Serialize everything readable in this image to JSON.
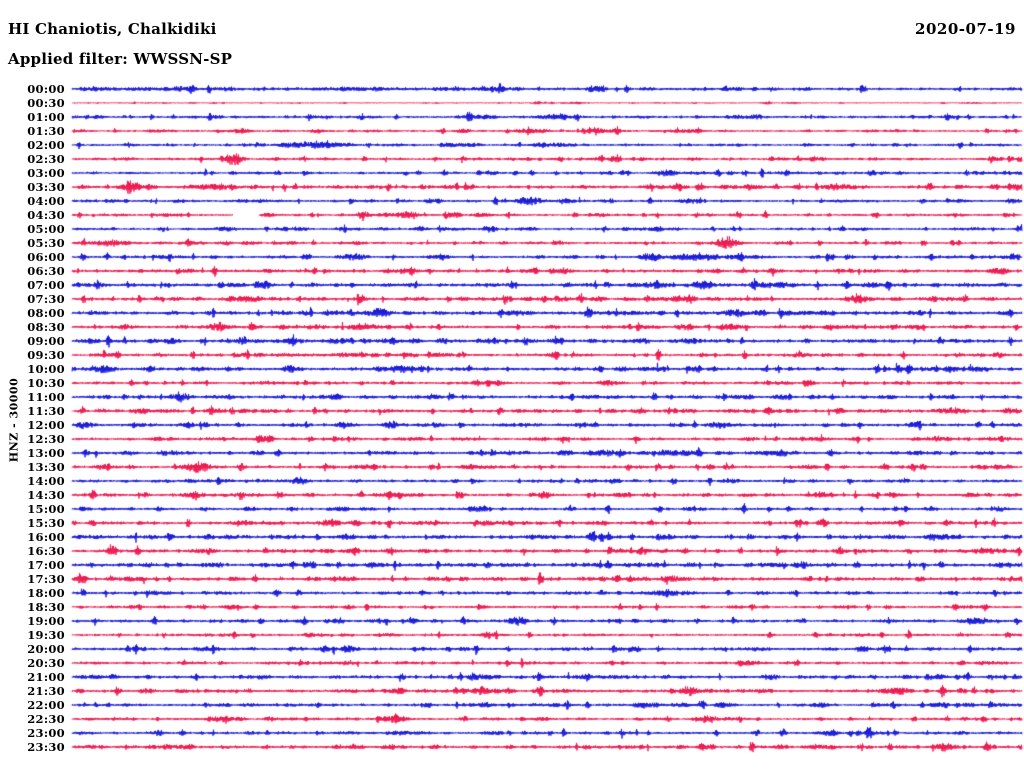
{
  "header": {
    "station": "HI Chaniotis, Chalkidiki",
    "filter_label": "Applied filter: WWSSN-SP",
    "date": "2020-07-19"
  },
  "chart_data": {
    "type": "line",
    "subtype": "helicorder-seismogram",
    "title": "HI Chaniotis, Chalkidiki",
    "date": "2020-07-19",
    "filter_label": "Applied filter: WWSSN-SP",
    "channel_scale_label": "HNZ - 30000",
    "x_axis": "minutes within each row (0-30 min per line)",
    "y_axis": "time of day, one row per 30 minutes, top=00:00 bottom=23:30",
    "row_step_minutes": 30,
    "grid": false,
    "legend": "none",
    "colors": {
      "trace_blue": "#1111d6",
      "trace_red": "#ec1048",
      "text": "#000000",
      "background": "#ffffff"
    },
    "notable_features": [
      {
        "row": "02:30",
        "pos": 0.17,
        "note": "large amplitude burst"
      },
      {
        "row": "04:30",
        "from": 0.169,
        "to": 0.197,
        "note": "data gap (blank trace segment)"
      },
      {
        "row": "05:30",
        "pos": 0.69,
        "note": "large amplitude burst"
      },
      {
        "row": "13:30",
        "pos": 0.132,
        "note": "large amplitude burst"
      },
      {
        "row": "00:30",
        "note": "quietest trace of the day"
      }
    ],
    "rows": [
      {
        "t": "00:00",
        "c": "b",
        "a": 1.15,
        "b": [
          [
            0.1,
            0.05,
            0.8
          ],
          [
            0.3,
            0.04,
            0.9
          ],
          [
            0.44,
            0.02,
            0.9
          ]
        ]
      },
      {
        "t": "00:30",
        "c": "r",
        "a": 0.35,
        "b": [
          [
            0.49,
            0.004,
            1.4
          ],
          [
            0.53,
            0.004,
            1.2
          ],
          [
            0.73,
            0.004,
            1.4
          ]
        ]
      },
      {
        "t": "01:00",
        "c": "b",
        "a": 1.0,
        "b": [
          [
            0.51,
            0.015,
            2.2
          ],
          [
            0.72,
            0.006,
            1.8
          ]
        ]
      },
      {
        "t": "01:30",
        "c": "r",
        "a": 0.85,
        "b": [
          [
            0.18,
            0.006,
            1.8
          ],
          [
            0.26,
            0.005,
            1.4
          ],
          [
            0.41,
            0.005,
            1.4
          ],
          [
            0.55,
            0.006,
            1.6
          ]
        ]
      },
      {
        "t": "02:00",
        "c": "b",
        "a": 0.9,
        "b": [
          [
            0.26,
            0.02,
            2.0
          ],
          [
            0.5,
            0.012,
            1.8
          ]
        ]
      },
      {
        "t": "02:30",
        "c": "r",
        "a": 0.95,
        "b": [
          [
            0.17,
            0.007,
            4.6
          ],
          [
            0.57,
            0.005,
            1.6
          ],
          [
            0.78,
            0.004,
            1.5
          ]
        ]
      },
      {
        "t": "03:00",
        "c": "b",
        "a": 0.95,
        "b": [
          [
            0.625,
            0.008,
            2.6
          ],
          [
            0.44,
            0.004,
            1.5
          ]
        ]
      },
      {
        "t": "03:30",
        "c": "r",
        "a": 1.25,
        "b": [
          [
            0.065,
            0.008,
            2.6
          ],
          [
            0.145,
            0.018,
            1.8
          ],
          [
            0.61,
            0.005,
            1.6
          ],
          [
            0.81,
            0.012,
            1.6
          ],
          [
            0.995,
            0.006,
            2.8
          ]
        ]
      },
      {
        "t": "04:00",
        "c": "b",
        "a": 1.05,
        "b": [
          [
            0.482,
            0.01,
            3.0
          ],
          [
            0.52,
            0.006,
            2.0
          ],
          [
            0.65,
            0.005,
            1.7
          ]
        ]
      },
      {
        "t": "04:30",
        "c": "r",
        "a": 0.95,
        "gap": [
          0.169,
          0.197
        ],
        "b": [
          [
            0.308,
            0.006,
            2.6
          ],
          [
            0.356,
            0.007,
            2.8
          ],
          [
            0.4,
            0.005,
            2.0
          ],
          [
            0.432,
            0.005,
            1.8
          ]
        ]
      },
      {
        "t": "05:00",
        "c": "b",
        "a": 0.95,
        "b": [
          [
            0.24,
            0.005,
            1.7
          ],
          [
            0.44,
            0.005,
            1.7
          ],
          [
            0.615,
            0.006,
            2.0
          ]
        ]
      },
      {
        "t": "05:30",
        "c": "r",
        "a": 0.95,
        "b": [
          [
            0.69,
            0.009,
            4.6
          ],
          [
            0.04,
            0.02,
            1.4
          ],
          [
            0.3,
            0.005,
            1.5
          ]
        ]
      },
      {
        "t": "06:00",
        "c": "b",
        "a": 1.1,
        "b": [
          [
            0.612,
            0.006,
            2.8
          ],
          [
            0.655,
            0.018,
            2.0
          ],
          [
            0.3,
            0.004,
            1.5
          ]
        ]
      },
      {
        "t": "06:30",
        "c": "r",
        "a": 1.25,
        "b": [
          [
            0.977,
            0.006,
            3.0
          ],
          [
            0.35,
            0.01,
            1.5
          ]
        ]
      },
      {
        "t": "07:00",
        "c": "b",
        "a": 1.5,
        "b": [
          [
            0.203,
            0.005,
            2.2
          ],
          [
            0.662,
            0.007,
            2.6
          ],
          [
            0.84,
            0.006,
            2.0
          ]
        ]
      },
      {
        "t": "07:30",
        "c": "r",
        "a": 1.3,
        "b": [
          [
            0.514,
            0.005,
            2.0
          ],
          [
            0.828,
            0.009,
            2.8
          ]
        ]
      },
      {
        "t": "08:00",
        "c": "b",
        "a": 1.4,
        "b": [
          [
            0.698,
            0.008,
            3.2
          ],
          [
            0.324,
            0.006,
            2.0
          ],
          [
            0.47,
            0.01,
            1.8
          ]
        ]
      },
      {
        "t": "08:30",
        "c": "r",
        "a": 1.3,
        "b": [
          [
            0.15,
            0.005,
            2.4
          ],
          [
            0.303,
            0.005,
            2.8
          ],
          [
            0.645,
            0.006,
            2.0
          ],
          [
            0.8,
            0.006,
            2.0
          ]
        ]
      },
      {
        "t": "09:00",
        "c": "b",
        "a": 1.35,
        "b": [
          [
            0.182,
            0.005,
            2.6
          ],
          [
            0.514,
            0.004,
            1.8
          ]
        ]
      },
      {
        "t": "09:30",
        "c": "r",
        "a": 1.15,
        "b": [
          [
            0.766,
            0.006,
            2.0
          ],
          [
            0.977,
            0.005,
            2.0
          ]
        ]
      },
      {
        "t": "10:00",
        "c": "b",
        "a": 1.35,
        "b": [
          [
            0.028,
            0.007,
            2.8
          ],
          [
            0.23,
            0.005,
            2.6
          ],
          [
            0.345,
            0.005,
            2.2
          ],
          [
            0.924,
            0.006,
            2.4
          ]
        ]
      },
      {
        "t": "10:30",
        "c": "r",
        "a": 1.05,
        "b": [
          [
            0.566,
            0.006,
            2.0
          ],
          [
            0.777,
            0.005,
            1.8
          ]
        ]
      },
      {
        "t": "11:00",
        "c": "b",
        "a": 1.25,
        "b": [
          [
            0.115,
            0.007,
            2.8
          ]
        ]
      },
      {
        "t": "11:30",
        "c": "r",
        "a": 1.25,
        "b": [
          [
            0.598,
            0.005,
            2.0
          ],
          [
            0.808,
            0.005,
            2.0
          ],
          [
            0.987,
            0.006,
            2.4
          ]
        ]
      },
      {
        "t": "12:00",
        "c": "b",
        "a": 1.25,
        "b": [
          [
            0.014,
            0.006,
            2.4
          ],
          [
            0.285,
            0.005,
            2.4
          ],
          [
            0.335,
            0.005,
            2.2
          ],
          [
            0.682,
            0.005,
            2.2
          ],
          [
            0.887,
            0.005,
            2.0
          ]
        ]
      },
      {
        "t": "12:30",
        "c": "r",
        "a": 1.05,
        "b": [
          [
            0.2,
            0.005,
            2.2
          ],
          [
            0.913,
            0.005,
            2.0
          ]
        ]
      },
      {
        "t": "13:00",
        "c": "b",
        "a": 1.25,
        "b": [
          [
            0.624,
            0.006,
            2.4
          ],
          [
            0.745,
            0.008,
            2.8
          ]
        ]
      },
      {
        "t": "13:30",
        "c": "r",
        "a": 1.15,
        "b": [
          [
            0.132,
            0.009,
            4.6
          ],
          [
            0.42,
            0.005,
            1.6
          ]
        ]
      },
      {
        "t": "14:00",
        "c": "b",
        "a": 1.05,
        "b": [
          [
            0.24,
            0.006,
            2.0
          ]
        ]
      },
      {
        "t": "14:30",
        "c": "r",
        "a": 1.15,
        "b": [
          [
            0.498,
            0.005,
            2.0
          ],
          [
            0.787,
            0.005,
            2.0
          ]
        ]
      },
      {
        "t": "15:00",
        "c": "b",
        "a": 1.05,
        "b": [
          [
            0.282,
            0.006,
            2.4
          ],
          [
            0.424,
            0.005,
            1.8
          ],
          [
            0.977,
            0.005,
            2.0
          ]
        ]
      },
      {
        "t": "15:30",
        "c": "r",
        "a": 1.2,
        "b": [
          [
            0.18,
            0.006,
            2.2
          ],
          [
            0.273,
            0.006,
            3.2
          ],
          [
            0.44,
            0.01,
            1.8
          ]
        ]
      },
      {
        "t": "16:00",
        "c": "b",
        "a": 1.45,
        "b": [
          [
            0.913,
            0.006,
            2.2
          ]
        ]
      },
      {
        "t": "16:30",
        "c": "r",
        "a": 1.25,
        "b": [
          [
            0.6,
            0.005,
            2.0
          ],
          [
            0.81,
            0.005,
            1.8
          ]
        ]
      },
      {
        "t": "17:00",
        "c": "b",
        "a": 1.45,
        "b": []
      },
      {
        "t": "17:30",
        "c": "r",
        "a": 1.45,
        "b": [
          [
            0.63,
            0.006,
            2.4
          ]
        ]
      },
      {
        "t": "18:00",
        "c": "b",
        "a": 1.15,
        "b": [
          [
            0.085,
            0.004,
            1.8
          ]
        ]
      },
      {
        "t": "18:30",
        "c": "r",
        "a": 1.0,
        "b": [
          [
            0.17,
            0.006,
            2.4
          ]
        ]
      },
      {
        "t": "19:00",
        "c": "b",
        "a": 1.15,
        "b": [
          [
            0.47,
            0.006,
            2.4
          ],
          [
            0.95,
            0.01,
            1.8
          ]
        ]
      },
      {
        "t": "19:30",
        "c": "r",
        "a": 0.95,
        "b": [
          [
            0.44,
            0.007,
            2.6
          ]
        ]
      },
      {
        "t": "20:00",
        "c": "b",
        "a": 1.2,
        "b": [
          [
            0.29,
            0.006,
            2.2
          ],
          [
            0.593,
            0.004,
            1.8
          ]
        ]
      },
      {
        "t": "20:30",
        "c": "r",
        "a": 0.95,
        "b": [
          [
            0.29,
            0.005,
            1.8
          ],
          [
            0.71,
            0.006,
            2.0
          ]
        ]
      },
      {
        "t": "21:00",
        "c": "b",
        "a": 1.25,
        "b": [
          [
            0.54,
            0.005,
            2.0
          ],
          [
            0.913,
            0.005,
            2.2
          ]
        ]
      },
      {
        "t": "21:30",
        "c": "r",
        "a": 1.35,
        "b": [
          [
            0.65,
            0.008,
            2.0
          ],
          [
            0.87,
            0.008,
            2.0
          ]
        ]
      },
      {
        "t": "22:00",
        "c": "b",
        "a": 1.05,
        "b": [
          [
            0.603,
            0.007,
            2.4
          ],
          [
            0.945,
            0.004,
            1.8
          ]
        ]
      },
      {
        "t": "22:30",
        "c": "r",
        "a": 0.9,
        "b": [
          [
            0.666,
            0.008,
            3.2
          ],
          [
            0.21,
            0.006,
            1.8
          ],
          [
            0.34,
            0.01,
            1.8
          ]
        ]
      },
      {
        "t": "23:00",
        "c": "b",
        "a": 1.05,
        "b": [
          [
            0.798,
            0.006,
            2.4
          ],
          [
            0.09,
            0.004,
            1.8
          ]
        ]
      },
      {
        "t": "23:30",
        "c": "r",
        "a": 1.25,
        "b": [
          [
            0.919,
            0.007,
            3.0
          ],
          [
            0.3,
            0.004,
            1.8
          ]
        ]
      }
    ]
  }
}
